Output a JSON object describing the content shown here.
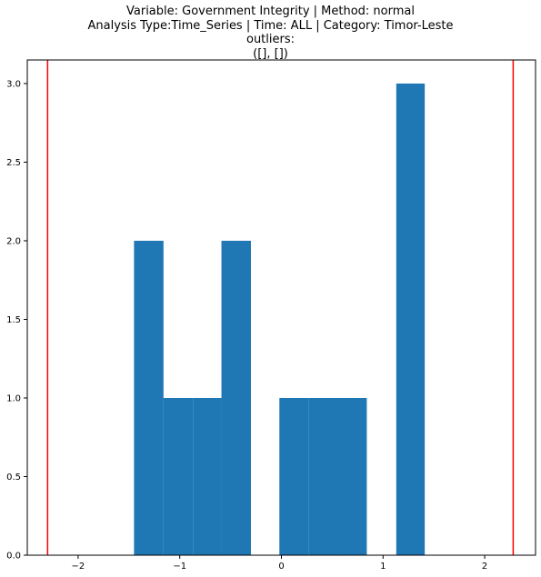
{
  "chart_data": {
    "type": "bar",
    "title_lines": [
      "Variable: Government Integrity | Method: normal",
      "Analysis Type:Time_Series | Time: ALL | Category: Timor-Leste",
      "outliers:",
      "([], [])"
    ],
    "xlabel": "",
    "ylabel": "",
    "xlim": [
      -2.5,
      2.5
    ],
    "ylim": [
      0,
      3.15
    ],
    "x_ticks": [
      -2,
      -1,
      0,
      1,
      2
    ],
    "x_tick_labels": [
      "−2",
      "−1",
      "0",
      "1",
      "2"
    ],
    "y_ticks": [
      0.0,
      0.5,
      1.0,
      1.5,
      2.0,
      2.5,
      3.0
    ],
    "y_tick_labels": [
      "0.0",
      "0.5",
      "1.0",
      "1.5",
      "2.0",
      "2.5",
      "3.0"
    ],
    "bins": [
      {
        "x0": -1.45,
        "x1": -1.16,
        "count": 2
      },
      {
        "x0": -1.16,
        "x1": -0.87,
        "count": 1
      },
      {
        "x0": -0.87,
        "x1": -0.59,
        "count": 1
      },
      {
        "x0": -0.59,
        "x1": -0.3,
        "count": 2
      },
      {
        "x0": -0.3,
        "x1": -0.02,
        "count": 0
      },
      {
        "x0": -0.02,
        "x1": 0.27,
        "count": 1
      },
      {
        "x0": 0.27,
        "x1": 0.55,
        "count": 1
      },
      {
        "x0": 0.55,
        "x1": 0.84,
        "count": 1
      },
      {
        "x0": 0.84,
        "x1": 1.13,
        "count": 0
      },
      {
        "x0": 1.13,
        "x1": 1.41,
        "count": 3
      }
    ],
    "bar_color": "#1f77b4",
    "threshold_lines": [
      -2.3,
      2.28
    ],
    "threshold_color": "#ff0000",
    "grid": false
  }
}
